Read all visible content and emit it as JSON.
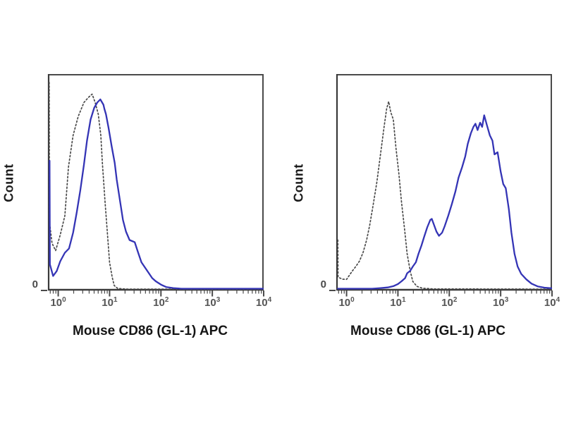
{
  "colors": {
    "background": "#ffffff",
    "axis": "#4a4a4a",
    "axis_dark": "#3a3a3a",
    "control_line": "#4a4a4a",
    "stained_line": "#3434b5",
    "tick_text": "#555555",
    "label_text": "#1c1c1c"
  },
  "chart_data": [
    {
      "panel": "left",
      "type": "line",
      "subtype": "flow-cytometry-histogram-overlay",
      "xlabel": "Mouse CD86 (GL-1) APC",
      "ylabel": "Count",
      "y_axis_tick_labels": [
        "0"
      ],
      "xscale": "log10",
      "xlim_log10": [
        -0.2,
        4.0
      ],
      "ylim": [
        0,
        100
      ],
      "grid": false,
      "legend": false,
      "x_ticks": [
        {
          "base": "10",
          "exp": "0",
          "log10": 0
        },
        {
          "base": "10",
          "exp": "1",
          "log10": 1
        },
        {
          "base": "10",
          "exp": "2",
          "log10": 2
        },
        {
          "base": "10",
          "exp": "3",
          "log10": 3
        },
        {
          "base": "10",
          "exp": "4",
          "log10": 4
        }
      ],
      "series": [
        {
          "id": "control-dotted",
          "line_style": "dotted",
          "color": "#4a4a4a",
          "points_log10x_countpct": [
            [
              -0.175,
              98
            ],
            [
              -0.17,
              32
            ],
            [
              -0.12,
              22
            ],
            [
              -0.05,
              18.5
            ],
            [
              0.04,
              26
            ],
            [
              0.13,
              35
            ],
            [
              0.2,
              58
            ],
            [
              0.29,
              73
            ],
            [
              0.39,
              82
            ],
            [
              0.5,
              88.5
            ],
            [
              0.59,
              91
            ],
            [
              0.66,
              92.5
            ],
            [
              0.72,
              88.5
            ],
            [
              0.78,
              83
            ],
            [
              0.83,
              73
            ],
            [
              0.86,
              60
            ],
            [
              0.91,
              42
            ],
            [
              0.96,
              26
            ],
            [
              1.0,
              13
            ],
            [
              1.05,
              6
            ],
            [
              1.09,
              2
            ],
            [
              1.16,
              0.6
            ],
            [
              1.35,
              0.3
            ],
            [
              4.0,
              0.3
            ]
          ]
        },
        {
          "id": "stained-solid",
          "line_style": "solid",
          "color": "#3434b5",
          "points_log10x_countpct": [
            [
              -0.168,
              61
            ],
            [
              -0.162,
              12
            ],
            [
              -0.1,
              6.5
            ],
            [
              -0.03,
              8.8
            ],
            [
              0.04,
              13.5
            ],
            [
              0.13,
              17.5
            ],
            [
              0.21,
              19.5
            ],
            [
              0.29,
              27
            ],
            [
              0.36,
              36.5
            ],
            [
              0.43,
              47
            ],
            [
              0.5,
              59
            ],
            [
              0.56,
              70.5
            ],
            [
              0.63,
              80.5
            ],
            [
              0.7,
              86
            ],
            [
              0.76,
              88.5
            ],
            [
              0.82,
              90
            ],
            [
              0.88,
              87.5
            ],
            [
              0.9,
              85.5
            ],
            [
              0.93,
              83
            ],
            [
              0.98,
              76.5
            ],
            [
              1.04,
              68
            ],
            [
              1.1,
              60
            ],
            [
              1.14,
              52
            ],
            [
              1.21,
              41
            ],
            [
              1.26,
              33
            ],
            [
              1.32,
              27.5
            ],
            [
              1.39,
              23.5
            ],
            [
              1.44,
              23
            ],
            [
              1.49,
              22.5
            ],
            [
              1.55,
              18
            ],
            [
              1.62,
              13
            ],
            [
              1.69,
              10.5
            ],
            [
              1.76,
              8
            ],
            [
              1.83,
              5.5
            ],
            [
              1.9,
              4
            ],
            [
              2.01,
              2.3
            ],
            [
              2.1,
              1.3
            ],
            [
              2.24,
              0.8
            ],
            [
              2.4,
              0.5
            ],
            [
              4.0,
              0.5
            ]
          ]
        }
      ]
    },
    {
      "panel": "right",
      "type": "line",
      "subtype": "flow-cytometry-histogram-overlay",
      "xlabel": "Mouse CD86 (GL-1) APC",
      "ylabel": "Count",
      "y_axis_tick_labels": [
        "0"
      ],
      "xscale": "log10",
      "xlim_log10": [
        -0.2,
        4.0
      ],
      "ylim": [
        0,
        100
      ],
      "grid": false,
      "legend": false,
      "x_ticks": [
        {
          "base": "10",
          "exp": "0",
          "log10": 0
        },
        {
          "base": "10",
          "exp": "1",
          "log10": 1
        },
        {
          "base": "10",
          "exp": "2",
          "log10": 2
        },
        {
          "base": "10",
          "exp": "3",
          "log10": 3
        },
        {
          "base": "10",
          "exp": "4",
          "log10": 4
        }
      ],
      "series": [
        {
          "id": "control-dotted",
          "line_style": "dotted",
          "color": "#4a4a4a",
          "points_log10x_countpct": [
            [
              -0.17,
              23.5
            ],
            [
              -0.165,
              6
            ],
            [
              -0.08,
              5
            ],
            [
              0.0,
              4.9
            ],
            [
              0.11,
              8.8
            ],
            [
              0.18,
              11
            ],
            [
              0.25,
              13.5
            ],
            [
              0.32,
              17.5
            ],
            [
              0.39,
              23.5
            ],
            [
              0.45,
              30.5
            ],
            [
              0.52,
              40.5
            ],
            [
              0.59,
              51
            ],
            [
              0.66,
              64
            ],
            [
              0.73,
              77
            ],
            [
              0.78,
              85.5
            ],
            [
              0.82,
              89
            ],
            [
              0.86,
              84
            ],
            [
              0.91,
              80.5
            ],
            [
              0.96,
              67.5
            ],
            [
              1.02,
              54.5
            ],
            [
              1.07,
              41.5
            ],
            [
              1.13,
              28.5
            ],
            [
              1.18,
              17
            ],
            [
              1.24,
              8.8
            ],
            [
              1.29,
              3.9
            ],
            [
              1.37,
              1.6
            ],
            [
              1.48,
              0.7
            ],
            [
              1.7,
              0.4
            ],
            [
              4.0,
              0.3
            ]
          ]
        },
        {
          "id": "stained-solid",
          "line_style": "solid",
          "color": "#3434b5",
          "points_log10x_countpct": [
            [
              -0.17,
              0.5
            ],
            [
              0.5,
              0.5
            ],
            [
              0.66,
              0.8
            ],
            [
              0.8,
              1.1
            ],
            [
              0.91,
              1.7
            ],
            [
              1.0,
              2.7
            ],
            [
              1.07,
              4
            ],
            [
              1.14,
              5.5
            ],
            [
              1.18,
              7.8
            ],
            [
              1.24,
              9
            ],
            [
              1.29,
              11
            ],
            [
              1.35,
              13
            ],
            [
              1.4,
              17
            ],
            [
              1.46,
              21
            ],
            [
              1.51,
              25
            ],
            [
              1.57,
              29.5
            ],
            [
              1.63,
              33
            ],
            [
              1.66,
              33.5
            ],
            [
              1.69,
              31.5
            ],
            [
              1.75,
              27.5
            ],
            [
              1.8,
              25.5
            ],
            [
              1.86,
              27
            ],
            [
              1.91,
              30
            ],
            [
              1.98,
              35
            ],
            [
              2.05,
              40.5
            ],
            [
              2.12,
              46.5
            ],
            [
              2.18,
              53
            ],
            [
              2.25,
              58
            ],
            [
              2.31,
              63
            ],
            [
              2.36,
              69
            ],
            [
              2.42,
              74
            ],
            [
              2.47,
              77
            ],
            [
              2.51,
              78.5
            ],
            [
              2.55,
              75.5
            ],
            [
              2.6,
              79
            ],
            [
              2.64,
              77
            ],
            [
              2.68,
              82.5
            ],
            [
              2.73,
              78
            ],
            [
              2.79,
              73
            ],
            [
              2.84,
              70.5
            ],
            [
              2.88,
              64
            ],
            [
              2.94,
              65
            ],
            [
              3.0,
              56
            ],
            [
              3.05,
              50
            ],
            [
              3.1,
              48
            ],
            [
              3.16,
              38
            ],
            [
              3.21,
              27
            ],
            [
              3.27,
              17
            ],
            [
              3.33,
              11
            ],
            [
              3.4,
              7.5
            ],
            [
              3.5,
              4.9
            ],
            [
              3.6,
              2.9
            ],
            [
              3.72,
              1.6
            ],
            [
              3.85,
              1.0
            ],
            [
              4.0,
              0.7
            ]
          ]
        }
      ]
    }
  ],
  "layout_note": "two flow histogram panels, no legend, no gridlines"
}
